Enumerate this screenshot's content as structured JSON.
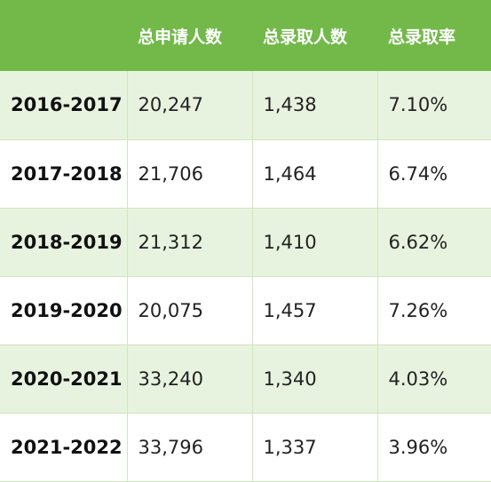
{
  "table": {
    "headers": [
      "",
      "总申请人数",
      "总录取人数",
      "总录取率"
    ],
    "rows": [
      {
        "year": "2016-2017",
        "applicants": "20,247",
        "admitted": "1,438",
        "rate": "7.10%"
      },
      {
        "year": "2017-2018",
        "applicants": "21,706",
        "admitted": "1,464",
        "rate": "6.74%"
      },
      {
        "year": "2018-2019",
        "applicants": "21,312",
        "admitted": "1,410",
        "rate": "6.62%"
      },
      {
        "year": "2019-2020",
        "applicants": "20,075",
        "admitted": "1,457",
        "rate": "7.26%"
      },
      {
        "year": "2020-2021",
        "applicants": "33,240",
        "admitted": "1,340",
        "rate": "4.03%"
      },
      {
        "year": "2021-2022",
        "applicants": "33,796",
        "admitted": "1,337",
        "rate": "3.96%"
      }
    ]
  },
  "colors": {
    "header_bg": "#72b94a",
    "shaded_row_bg": "#e8f3df",
    "border": "#cfe6c0"
  }
}
